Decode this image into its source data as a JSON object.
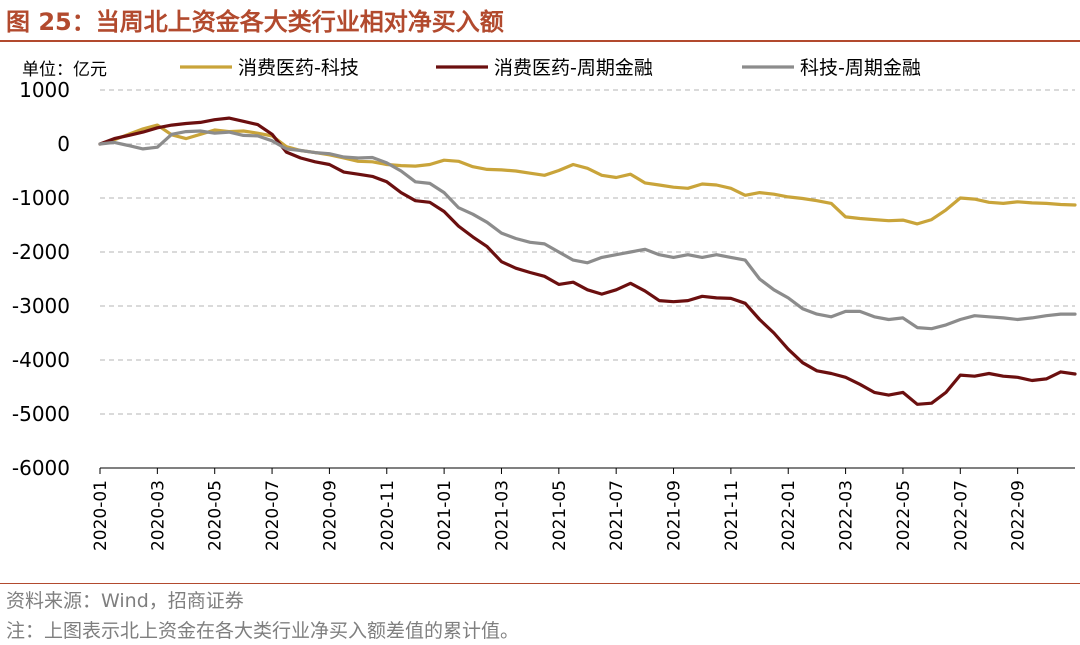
{
  "figure": {
    "title": "图 25：当周北上资金各大类行业相对净买入额",
    "unit_label": "单位：亿元",
    "source": "资料来源：Wind，招商证券",
    "note": "注：上图表示北上资金在各大类行业净买入额差值的累计值。"
  },
  "chart_data": {
    "type": "line",
    "title": "当周北上资金各大类行业相对净买入额",
    "ylabel": "单位：亿元",
    "xlabel": "",
    "ylim": [
      -6000,
      1000
    ],
    "yticks": [
      1000,
      0,
      -1000,
      -2000,
      -3000,
      -4000,
      -5000,
      -6000
    ],
    "xlim": [
      0,
      34
    ],
    "xtick_positions": [
      0,
      2,
      4,
      6,
      8,
      10,
      12,
      14,
      16,
      18,
      20,
      22,
      24,
      26,
      28,
      30,
      32
    ],
    "xtick_labels": [
      "2020-01",
      "2020-03",
      "2020-05",
      "2020-07",
      "2020-09",
      "2020-11",
      "2021-01",
      "2021-03",
      "2021-05",
      "2021-07",
      "2021-09",
      "2021-11",
      "2022-01",
      "2022-03",
      "2022-05",
      "2022-07",
      "2022-09"
    ],
    "grid": "horizontal-dashed",
    "legend_position": "top",
    "x_unit": "months since 2020-01",
    "series": [
      {
        "name": "消费医药-科技",
        "color": "#c9a43a",
        "x": [
          0,
          0.5,
          1,
          1.5,
          2,
          2.5,
          3,
          3.5,
          4,
          4.5,
          5,
          5.5,
          6,
          6.5,
          7,
          7.5,
          8,
          8.5,
          9,
          9.5,
          10,
          10.5,
          11,
          11.5,
          12,
          12.5,
          13,
          13.5,
          14,
          14.5,
          15,
          15.5,
          16,
          16.5,
          17,
          17.5,
          18,
          18.5,
          19,
          19.5,
          20,
          20.5,
          21,
          21.5,
          22,
          22.5,
          23,
          23.5,
          24,
          24.5,
          25,
          25.5,
          26,
          26.5,
          27,
          27.5,
          28,
          28.5,
          29,
          29.5,
          30,
          30.5,
          31,
          31.5,
          32,
          32.5,
          33,
          33.5,
          34
        ],
        "values": [
          0,
          80,
          180,
          280,
          350,
          170,
          100,
          180,
          260,
          230,
          240,
          200,
          150,
          -50,
          -120,
          -160,
          -200,
          -260,
          -320,
          -330,
          -380,
          -400,
          -410,
          -380,
          -300,
          -320,
          -420,
          -470,
          -480,
          -500,
          -540,
          -580,
          -490,
          -380,
          -450,
          -580,
          -620,
          -560,
          -720,
          -760,
          -800,
          -820,
          -740,
          -760,
          -820,
          -950,
          -900,
          -930,
          -980,
          -1010,
          -1050,
          -1100,
          -1350,
          -1380,
          -1400,
          -1420,
          -1410,
          -1480,
          -1400,
          -1220,
          -1000,
          -1020,
          -1080,
          -1100,
          -1070,
          -1090,
          -1100,
          -1120,
          -1130
        ]
      },
      {
        "name": "消费医药-周期金融",
        "color": "#6b0f0f",
        "x": [
          0,
          0.5,
          1,
          1.5,
          2,
          2.5,
          3,
          3.5,
          4,
          4.5,
          5,
          5.5,
          6,
          6.5,
          7,
          7.5,
          8,
          8.5,
          9,
          9.5,
          10,
          10.5,
          11,
          11.5,
          12,
          12.5,
          13,
          13.5,
          14,
          14.5,
          15,
          15.5,
          16,
          16.5,
          17,
          17.5,
          18,
          18.5,
          19,
          19.5,
          20,
          20.5,
          21,
          21.5,
          22,
          22.5,
          23,
          23.5,
          24,
          24.5,
          25,
          25.5,
          26,
          26.5,
          27,
          27.5,
          28,
          28.5,
          29,
          29.5,
          30,
          30.5,
          31,
          31.5,
          32,
          32.5,
          33,
          33.5,
          34
        ],
        "values": [
          0,
          100,
          160,
          220,
          300,
          350,
          380,
          400,
          450,
          480,
          420,
          360,
          180,
          -150,
          -260,
          -330,
          -380,
          -520,
          -560,
          -600,
          -700,
          -900,
          -1050,
          -1080,
          -1250,
          -1520,
          -1720,
          -1900,
          -2180,
          -2300,
          -2380,
          -2450,
          -2600,
          -2560,
          -2700,
          -2780,
          -2700,
          -2580,
          -2720,
          -2900,
          -2920,
          -2900,
          -2820,
          -2850,
          -2860,
          -2950,
          -3250,
          -3500,
          -3800,
          -4050,
          -4200,
          -4250,
          -4320,
          -4450,
          -4600,
          -4650,
          -4600,
          -4820,
          -4800,
          -4600,
          -4280,
          -4300,
          -4250,
          -4300,
          -4320,
          -4380,
          -4350,
          -4220,
          -4260
        ]
      },
      {
        "name": "科技-周期金融",
        "color": "#8c8c8c",
        "x": [
          0,
          0.5,
          1,
          1.5,
          2,
          2.5,
          3,
          3.5,
          4,
          4.5,
          5,
          5.5,
          6,
          6.5,
          7,
          7.5,
          8,
          8.5,
          9,
          9.5,
          10,
          10.5,
          11,
          11.5,
          12,
          12.5,
          13,
          13.5,
          14,
          14.5,
          15,
          15.5,
          16,
          16.5,
          17,
          17.5,
          18,
          18.5,
          19,
          19.5,
          20,
          20.5,
          21,
          21.5,
          22,
          22.5,
          23,
          23.5,
          24,
          24.5,
          25,
          25.5,
          26,
          26.5,
          27,
          27.5,
          28,
          28.5,
          29,
          29.5,
          30,
          30.5,
          31,
          31.5,
          32,
          32.5,
          33,
          33.5,
          34
        ],
        "values": [
          0,
          30,
          -30,
          -90,
          -60,
          180,
          230,
          240,
          200,
          220,
          160,
          150,
          60,
          -90,
          -120,
          -160,
          -180,
          -240,
          -260,
          -250,
          -350,
          -500,
          -700,
          -730,
          -900,
          -1180,
          -1300,
          -1450,
          -1650,
          -1750,
          -1820,
          -1850,
          -2000,
          -2150,
          -2200,
          -2100,
          -2050,
          -2000,
          -1950,
          -2050,
          -2100,
          -2050,
          -2100,
          -2050,
          -2100,
          -2150,
          -2500,
          -2700,
          -2850,
          -3050,
          -3150,
          -3200,
          -3100,
          -3100,
          -3200,
          -3250,
          -3220,
          -3400,
          -3420,
          -3350,
          -3250,
          -3180,
          -3200,
          -3220,
          -3250,
          -3220,
          -3180,
          -3150,
          -3150
        ]
      }
    ]
  }
}
